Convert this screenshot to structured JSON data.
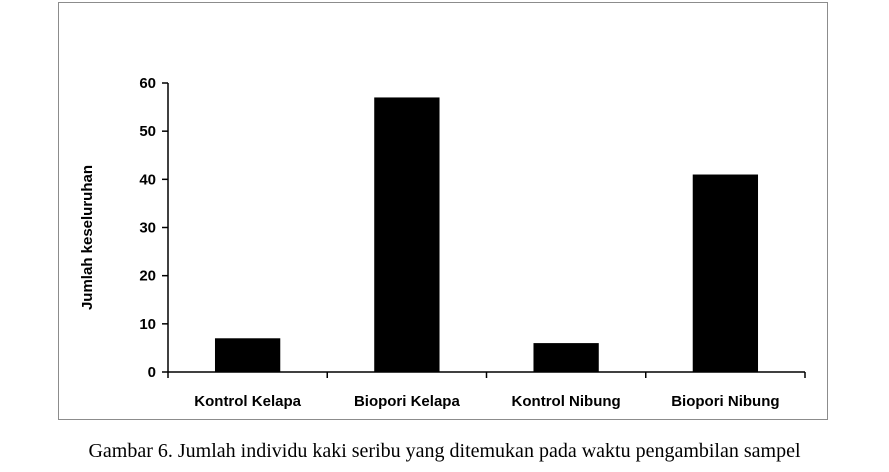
{
  "chart_data": {
    "type": "bar",
    "categories": [
      "Kontrol Kelapa",
      "Biopori Kelapa",
      "Kontrol Nibung",
      "Biopori Nibung"
    ],
    "values": [
      7,
      57,
      6,
      41
    ],
    "xlabel": "",
    "ylabel": "Jumlah keseluruhan",
    "ylim": [
      0,
      60
    ],
    "yticks": [
      0,
      10,
      20,
      30,
      40,
      50,
      60
    ],
    "bar_color": "#000000",
    "grid": false,
    "legend": "none"
  },
  "caption": "Gambar 6. Jumlah individu kaki seribu yang ditemukan pada waktu pengambilan sampel"
}
